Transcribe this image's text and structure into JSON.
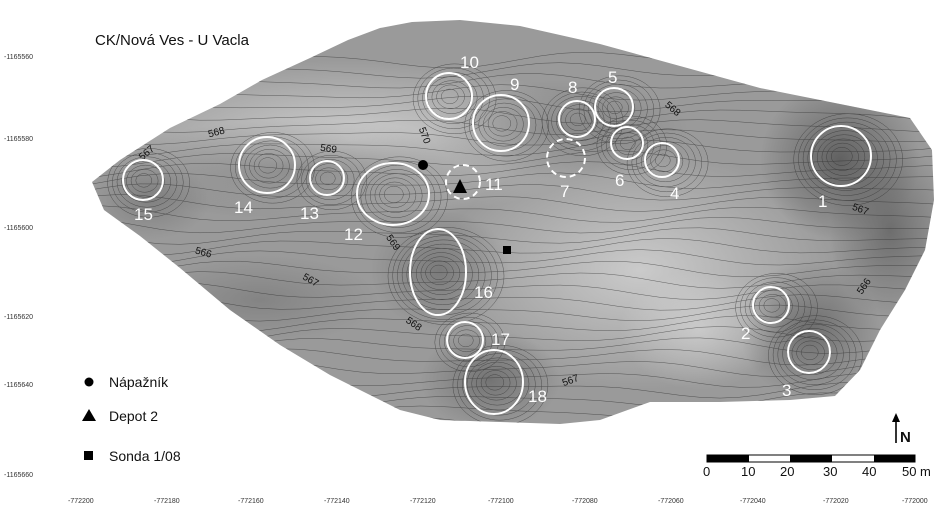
{
  "title": "CK/Nová Ves - U Vacla",
  "y_ticks": [
    "-1165560",
    "-1165580",
    "-1165600",
    "-1165620",
    "-1165640",
    "-1165660"
  ],
  "x_ticks": [
    "-772200",
    "-772180",
    "-772160",
    "-772140",
    "-772120",
    "-772100",
    "-772080",
    "-772060",
    "-772040",
    "-772020",
    "-772000"
  ],
  "features": [
    {
      "label": "1"
    },
    {
      "label": "2"
    },
    {
      "label": "3"
    },
    {
      "label": "4"
    },
    {
      "label": "5"
    },
    {
      "label": "6"
    },
    {
      "label": "7",
      "style": "dashed"
    },
    {
      "label": "8"
    },
    {
      "label": "9"
    },
    {
      "label": "10"
    },
    {
      "label": "11",
      "style": "dashed"
    },
    {
      "label": "12"
    },
    {
      "label": "13"
    },
    {
      "label": "14"
    },
    {
      "label": "15"
    },
    {
      "label": "16"
    },
    {
      "label": "17"
    },
    {
      "label": "18"
    }
  ],
  "contour_labels": [
    "567",
    "568",
    "569",
    "570",
    "566",
    "569",
    "568",
    "567",
    "568",
    "566",
    "567",
    "567",
    "567"
  ],
  "legend": [
    {
      "label": "Nápažník",
      "symbol": "circle"
    },
    {
      "label": "Depot 2",
      "symbol": "triangle"
    },
    {
      "label": "Sonda 1/08",
      "symbol": "square"
    }
  ],
  "scale_bar": {
    "labels": [
      "0",
      "10",
      "20",
      "30",
      "40",
      "50"
    ],
    "unit": "m"
  },
  "north": "N",
  "colors": {
    "terrain_light": "#e2e2e2",
    "terrain_dark": "#6e6e6e",
    "contour": "#2a2a2a",
    "feature_circle": "#ffffff"
  }
}
